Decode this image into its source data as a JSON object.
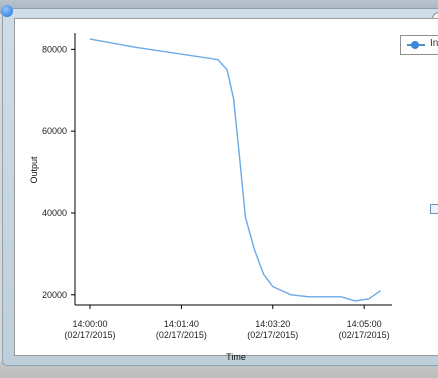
{
  "window": {
    "legend_label": "In"
  },
  "colors": {
    "line": "#6aa9e6",
    "axis": "#000000",
    "tick_text": "#222222"
  },
  "chart_data": {
    "type": "line",
    "xlabel": "Time",
    "ylabel": "Output",
    "ylim": [
      17500,
      84000
    ],
    "yticks": [
      20000,
      40000,
      60000,
      80000
    ],
    "ytick_labels": [
      "20000",
      "40000",
      "60000",
      "80000"
    ],
    "xlim": [
      "14:00:00",
      "14:05:25"
    ],
    "xticks": [
      "14:00:00",
      "14:01:40",
      "14:03:20",
      "14:05:00"
    ],
    "xtick_labels": [
      [
        "14:00:00",
        "(02/17/2015)"
      ],
      [
        "14:01:40",
        "(02/17/2015)"
      ],
      [
        "14:03:20",
        "(02/17/2015)"
      ],
      [
        "14:05:00",
        "(02/17/2015)"
      ]
    ],
    "series": [
      {
        "name": "In",
        "x": [
          "14:00:00",
          "14:00:50",
          "14:02:20",
          "14:02:30",
          "14:02:37",
          "14:02:43",
          "14:02:50",
          "14:03:00",
          "14:03:10",
          "14:03:20",
          "14:03:40",
          "14:04:00",
          "14:04:20",
          "14:04:35",
          "14:04:50",
          "14:05:05",
          "14:05:18"
        ],
        "y": [
          82500,
          80500,
          77500,
          75000,
          68000,
          55000,
          39000,
          31000,
          25000,
          22000,
          20000,
          19500,
          19500,
          19500,
          18500,
          19000,
          21000
        ]
      }
    ],
    "grid": false,
    "legend_position": "top-right"
  }
}
